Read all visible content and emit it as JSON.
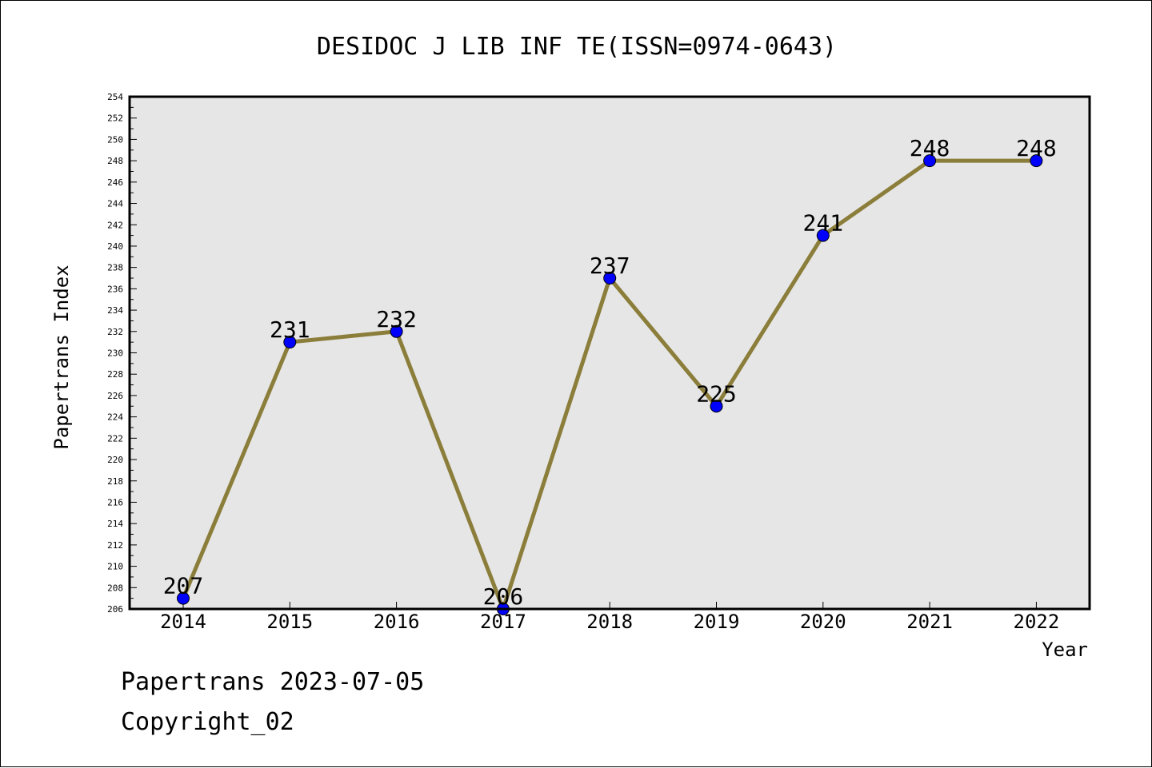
{
  "chart_data": {
    "type": "line",
    "title": "DESIDOC J LIB INF TE(ISSN=0974-0643)",
    "xlabel": "Year",
    "ylabel": "Papertrans Index",
    "categories": [
      "2014",
      "2015",
      "2016",
      "2017",
      "2018",
      "2019",
      "2020",
      "2021",
      "2022"
    ],
    "series": [
      {
        "values": [
          207,
          231,
          232,
          206,
          237,
          225,
          241,
          248,
          248
        ]
      }
    ],
    "data_labels": [
      "207",
      "231",
      "232",
      "206",
      "237",
      "225",
      "241",
      "248",
      "248"
    ],
    "ylim": [
      206,
      254
    ],
    "y_ticks": [
      "206",
      "208",
      "210",
      "212",
      "214",
      "216",
      "218",
      "220",
      "222",
      "224",
      "226",
      "228",
      "230",
      "232",
      "234",
      "236",
      "238",
      "240",
      "242",
      "244",
      "246",
      "248",
      "250",
      "252",
      "254"
    ],
    "grid": false,
    "legend": "none",
    "colors": {
      "line": "#8B7D3A",
      "marker": "#0000FF",
      "plot_background": "#E6E6E6"
    }
  },
  "footer": {
    "date_line": "Papertrans 2023-07-05",
    "copyright_line": "Copyright_02"
  }
}
